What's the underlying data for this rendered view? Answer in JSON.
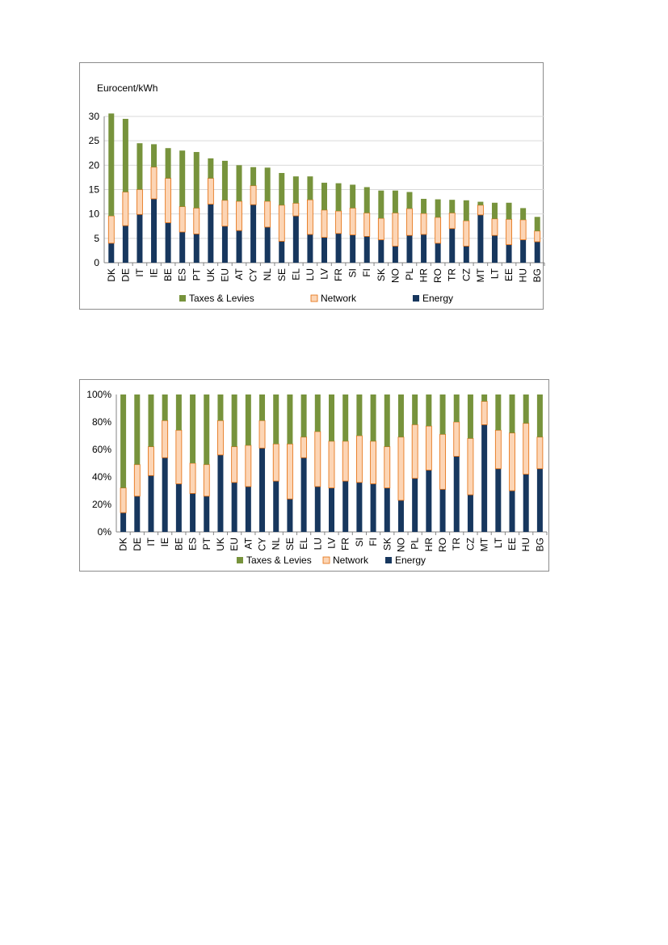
{
  "colors": {
    "taxes": "#77933c",
    "network": "#fcd5b5",
    "network_stroke": "#e46c0a",
    "energy": "#17375e",
    "grid": "#d9d9d9"
  },
  "chart_data": [
    {
      "type": "bar",
      "stacked": true,
      "ylabel": "Eurocent/kWh",
      "ylim": [
        0,
        30
      ],
      "yticks": [
        "0",
        "5",
        "10",
        "15",
        "20",
        "25",
        "30"
      ],
      "yticks_values": [
        0,
        5,
        10,
        15,
        20,
        25,
        30
      ],
      "grid": true,
      "legend_position": "bottom",
      "categories": [
        "DK",
        "DE",
        "IT",
        "IE",
        "BE",
        "ES",
        "PT",
        "UK",
        "EU",
        "AT",
        "CY",
        "NL",
        "SE",
        "EL",
        "LU",
        "LV",
        "FR",
        "SI",
        "FI",
        "SK",
        "NO",
        "PL",
        "HR",
        "RO",
        "TR",
        "CZ",
        "MT",
        "LT",
        "EE",
        "HU",
        "BG"
      ],
      "series": [
        {
          "name": "Energy",
          "values": [
            4.0,
            7.6,
            9.9,
            13.1,
            8.2,
            6.3,
            5.9,
            12.0,
            7.5,
            6.6,
            11.9,
            7.3,
            4.4,
            9.6,
            5.8,
            5.2,
            6.0,
            5.7,
            5.4,
            4.7,
            3.4,
            5.6,
            5.8,
            4.0,
            7.0,
            3.4,
            9.8,
            5.6,
            3.7,
            4.7,
            4.3
          ]
        },
        {
          "name": "Network",
          "values": [
            5.6,
            6.9,
            5.1,
            6.5,
            9.1,
            5.2,
            5.3,
            5.3,
            5.3,
            6.0,
            3.9,
            5.3,
            7.4,
            2.6,
            7.1,
            5.6,
            4.6,
            5.5,
            4.8,
            4.4,
            6.8,
            5.5,
            4.3,
            5.3,
            3.2,
            5.2,
            2.0,
            3.4,
            5.2,
            4.1,
            2.2
          ]
        },
        {
          "name": "Taxes & Levies",
          "values": [
            21.0,
            15.0,
            9.5,
            4.7,
            6.2,
            11.5,
            11.5,
            4.1,
            8.1,
            7.4,
            3.8,
            6.9,
            6.6,
            5.5,
            4.8,
            5.6,
            5.7,
            4.8,
            5.3,
            5.7,
            4.6,
            3.4,
            3.0,
            3.7,
            2.7,
            4.2,
            0.7,
            3.3,
            3.4,
            2.4,
            2.9
          ]
        }
      ],
      "legend": [
        "Taxes & Levies",
        "Network",
        "Energy"
      ]
    },
    {
      "type": "bar",
      "stacked": true,
      "percent": true,
      "ylim": [
        0,
        100
      ],
      "yticks": [
        "0%",
        "20%",
        "40%",
        "60%",
        "80%",
        "100%"
      ],
      "yticks_values": [
        0,
        20,
        40,
        60,
        80,
        100
      ],
      "legend_position": "bottom",
      "categories": [
        "DK",
        "DE",
        "IT",
        "IE",
        "BE",
        "ES",
        "PT",
        "UK",
        "EU",
        "AT",
        "CY",
        "NL",
        "SE",
        "EL",
        "LU",
        "LV",
        "FR",
        "SI",
        "FI",
        "SK",
        "NO",
        "PL",
        "HR",
        "RO",
        "TR",
        "CZ",
        "MT",
        "LT",
        "EE",
        "HU",
        "BG"
      ],
      "series": [
        {
          "name": "Energy",
          "values": [
            14,
            26,
            41,
            54,
            35,
            28,
            26,
            56,
            36,
            33,
            61,
            37,
            24,
            54,
            33,
            32,
            37,
            36,
            35,
            32,
            23,
            39,
            45,
            31,
            55,
            27,
            78,
            46,
            30,
            42,
            46
          ]
        },
        {
          "name": "Network",
          "values": [
            18,
            23,
            21,
            27,
            39,
            22,
            23,
            25,
            26,
            30,
            20,
            27,
            40,
            15,
            40,
            34,
            29,
            34,
            31,
            30,
            46,
            39,
            32,
            40,
            25,
            41,
            17,
            28,
            42,
            37,
            23
          ]
        },
        {
          "name": "Taxes & Levies",
          "values": [
            68,
            51,
            38,
            19,
            26,
            50,
            51,
            19,
            38,
            37,
            19,
            36,
            36,
            31,
            27,
            34,
            34,
            30,
            34,
            38,
            31,
            22,
            23,
            29,
            20,
            32,
            5,
            26,
            28,
            21,
            31
          ]
        }
      ],
      "legend": [
        "Taxes & Levies",
        "Network",
        "Energy"
      ]
    }
  ]
}
